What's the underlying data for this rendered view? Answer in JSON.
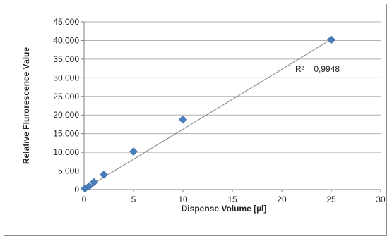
{
  "chart_data": {
    "type": "scatter",
    "xlabel": "Dispense Volume [µl]",
    "ylabel": "Relative Flurorescence Value",
    "xlim": [
      0,
      30
    ],
    "ylim": [
      0,
      45000
    ],
    "x_ticks": [
      0,
      5,
      10,
      15,
      20,
      25,
      30
    ],
    "y_ticks": [
      0,
      5000,
      10000,
      15000,
      20000,
      25000,
      30000,
      35000,
      40000,
      45000
    ],
    "x_tick_labels": [
      "0",
      "5",
      "10",
      "15",
      "20",
      "25",
      "30"
    ],
    "y_tick_labels": [
      "0",
      "5.000",
      "10.000",
      "15.000",
      "20.000",
      "25.000",
      "30.000",
      "35.000",
      "40.000",
      "45.000"
    ],
    "grid": "horizontal",
    "series": [
      {
        "marker": "diamond",
        "color": "#4a7ebb",
        "points": [
          {
            "x": 0.1,
            "y": 300
          },
          {
            "x": 0.5,
            "y": 900
          },
          {
            "x": 1,
            "y": 2000
          },
          {
            "x": 2,
            "y": 4000
          },
          {
            "x": 5,
            "y": 10200
          },
          {
            "x": 10,
            "y": 18800
          },
          {
            "x": 25,
            "y": 40200
          }
        ]
      }
    ],
    "trendline": {
      "type": "linear",
      "x": [
        0,
        25
      ],
      "y": [
        100,
        40300
      ],
      "color": "#7f7f7f"
    },
    "annotation": {
      "text": "R² = 0,9948"
    }
  }
}
